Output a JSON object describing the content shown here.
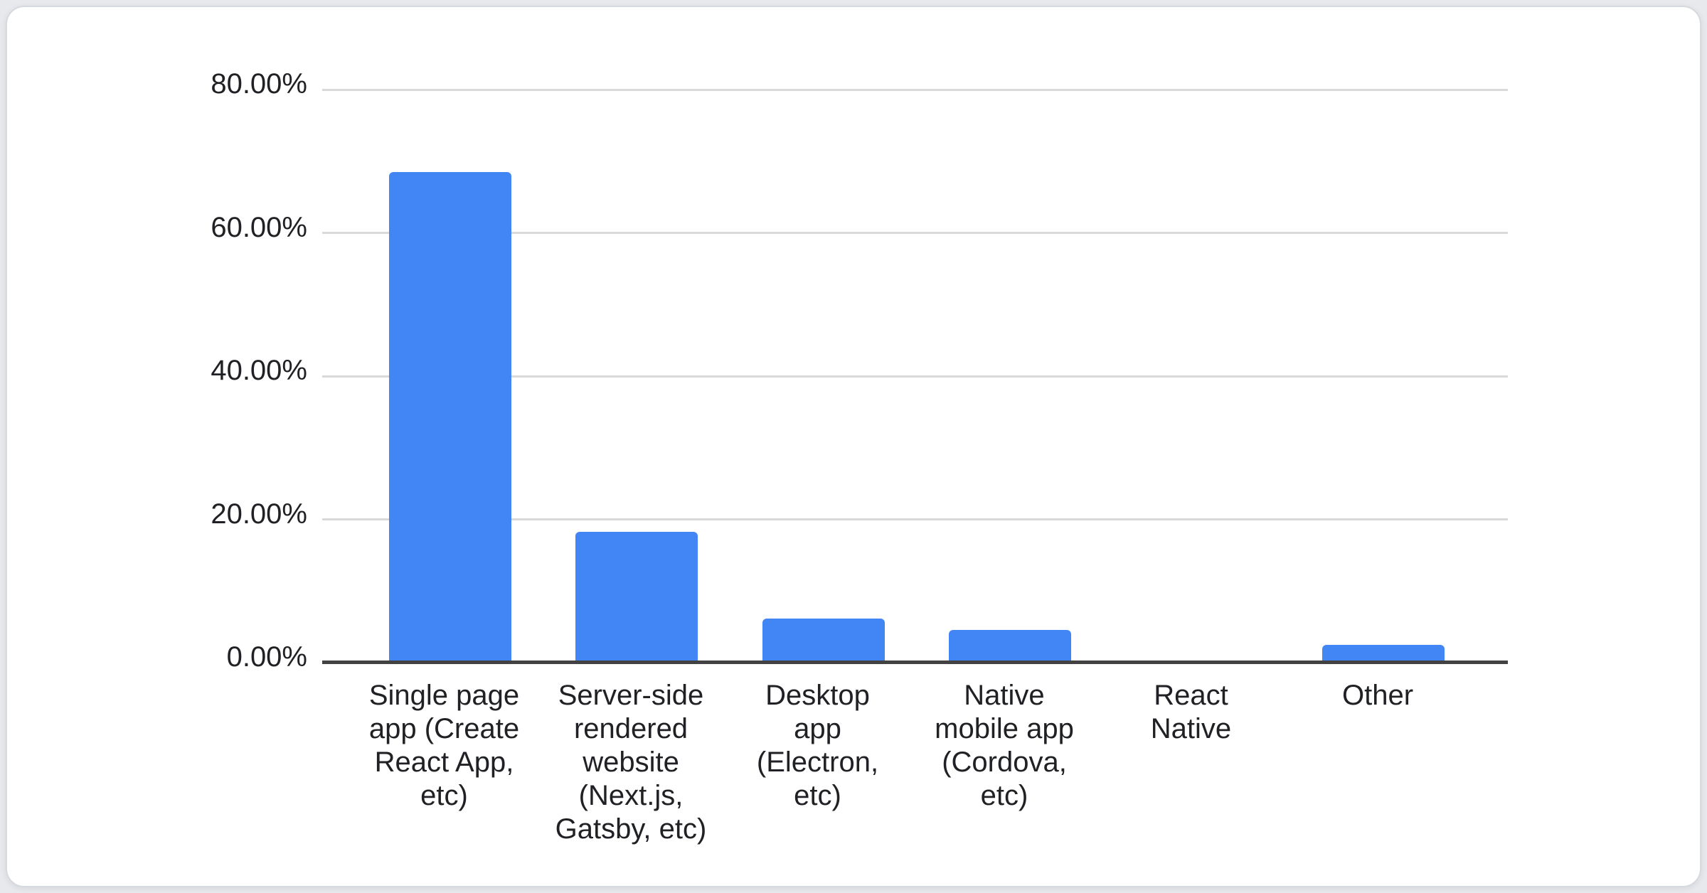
{
  "page": {
    "background_color": "#e7e9ec"
  },
  "card": {
    "background_color": "#ffffff",
    "border_color": "#d6d9dd",
    "title": ""
  },
  "chart_data": {
    "type": "bar",
    "title": "",
    "xlabel": "",
    "ylabel": "",
    "categories": [
      "Single page app (Create React App, etc)",
      "Server-side rendered website (Next.js, Gatsby, etc)",
      "Desktop app (Electron, etc)",
      "Native mobile app (Cordova, etc)",
      "React Native",
      "Other"
    ],
    "category_display": [
      "Single page\napp (Create\nReact App,\netc)",
      "Server-side\nrendered\nwebsite\n(Next.js,\nGatsby, etc)",
      "Desktop\napp\n(Electron,\netc)",
      "Native\nmobile app\n(Cordova,\netc)",
      "React\nNative",
      "Other"
    ],
    "values": [
      68.5,
      18.3,
      6.2,
      4.6,
      0,
      2.5
    ],
    "unit": "%",
    "ylim": [
      0,
      80
    ],
    "y_axis_ticks": [
      {
        "value": 80,
        "label": "80.00%"
      },
      {
        "value": 60,
        "label": "60.00%"
      },
      {
        "value": 40,
        "label": "40.00%"
      },
      {
        "value": 20,
        "label": "20.00%"
      },
      {
        "value": 0,
        "label": "0.00%"
      }
    ],
    "grid": true,
    "legend": "none",
    "bar_color": "#4285f4",
    "gridline_color": "#d9d9d9",
    "axis_line_color": "#424242",
    "label_color": "#202124"
  }
}
